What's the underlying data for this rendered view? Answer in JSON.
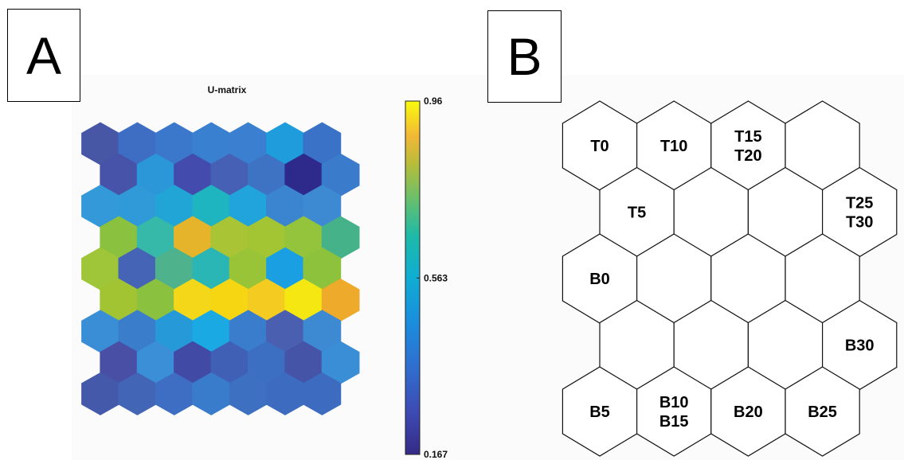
{
  "panels": {
    "a_label": "A",
    "b_label": "B"
  },
  "umatrix": {
    "title": "U-matrix",
    "colorbar": {
      "max_label": "0.96",
      "mid_label": "0.563",
      "min_label": "0.167",
      "min": 0.167,
      "mid": 0.563,
      "max": 0.96
    },
    "rows": [
      [
        "#4757a6",
        "#3e6ec4",
        "#3b78cb",
        "#3a80d0",
        "#3b7fd0",
        "#1f9cdc",
        "#3a72c7"
      ],
      [
        "#4653a8",
        "#2b96d8",
        "#434cad",
        "#4560b4",
        "#3e73c4",
        "#2d2a8c",
        "#3b7bcb"
      ],
      [
        "#3399d8",
        "#2f9ad7",
        "#21a5d6",
        "#1eb4c0",
        "#21a3dc",
        "#3a84d0",
        "#3d8ad2"
      ],
      [
        "#8ac23f",
        "#36b9a8",
        "#e6b42b",
        "#a9c535",
        "#a3c433",
        "#93c43c",
        "#45b28a"
      ],
      [
        "#9fc538",
        "#4564b5",
        "#4eb38c",
        "#2ab6b5",
        "#99c438",
        "#1aa0e2",
        "#8dc23d"
      ],
      [
        "#a2c433",
        "#8ac23f",
        "#f5d719",
        "#f6d613",
        "#f4cb21",
        "#f5e812",
        "#eeaa2a"
      ],
      [
        "#3a8ed5",
        "#3a7dca",
        "#2699d8",
        "#1aa9e2",
        "#3a7dcc",
        "#4b5fb0",
        "#3d8ad2"
      ],
      [
        "#484fa5",
        "#3a8fd6",
        "#414aa5",
        "#4060b5",
        "#3c6ec2",
        "#4654a7",
        "#3a8ed5"
      ],
      [
        "#4559ab",
        "#4365b6",
        "#3e6ec4",
        "#3a7ccc",
        "#3e70c2",
        "#3d6bbf",
        "#3c6bc0"
      ]
    ]
  },
  "som_map": {
    "rows": [
      [
        "T0",
        "T10",
        "T15\nT20",
        ""
      ],
      [
        "T5",
        "",
        "",
        "T25\nT30"
      ],
      [
        "B0",
        "",
        "",
        ""
      ],
      [
        "",
        "",
        "",
        "B30"
      ],
      [
        "B5",
        "B10\nB15",
        "B20",
        "B25"
      ]
    ]
  }
}
